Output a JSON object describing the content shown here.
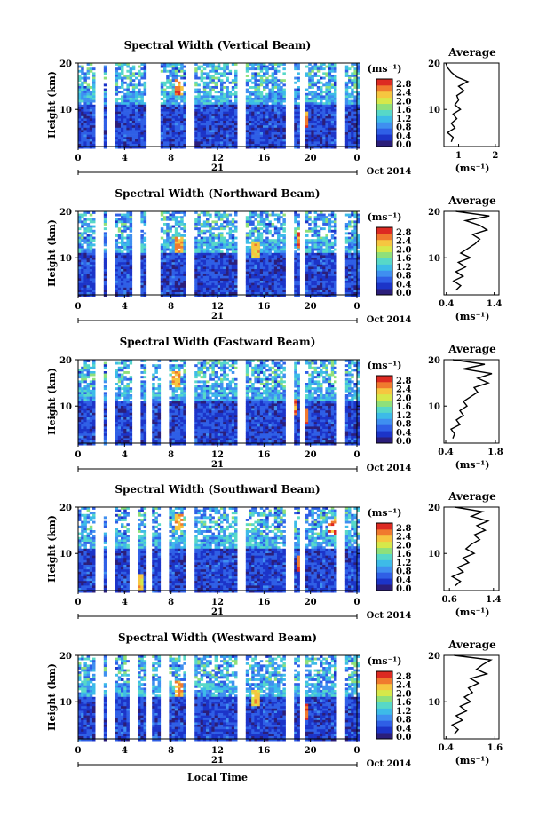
{
  "figure": {
    "xlabel": "Local Time",
    "date_label": "Oct 2014",
    "day_label": "21",
    "height_label": "Height (km)",
    "unit_label": "(ms⁻¹)",
    "avg_title": "Average"
  },
  "colorscale": {
    "ticks": [
      "2.8",
      "2.4",
      "2.0",
      "1.6",
      "1.2",
      "0.8",
      "0.4",
      "0.0"
    ],
    "colors": [
      "#2b1e7a",
      "#1c34c8",
      "#2f5fe6",
      "#3f8ff0",
      "#3dbbe8",
      "#57d8c8",
      "#8fe07a",
      "#d6e84a",
      "#f6c640",
      "#f07a2e",
      "#dd2a22"
    ]
  },
  "chart_data": [
    {
      "type": "heatmap",
      "title": "Spectral Width (Vertical Beam)",
      "xlabel": "Local Time",
      "ylabel": "Height (km)",
      "x_ticks": [
        "0",
        "4",
        "8",
        "12",
        "16",
        "20",
        "0"
      ],
      "xlim": [
        0,
        24
      ],
      "y_ticks": [
        "20",
        "10"
      ],
      "ylim": [
        2,
        20
      ],
      "gaps_hours": [
        1.7,
        2.6,
        6.0,
        6.7,
        9.5,
        14.0,
        18.0,
        19.2,
        22.4
      ],
      "hotspots": [
        {
          "t": 8.6,
          "h": 15,
          "v": 2.8
        },
        {
          "t": 19.3,
          "h": 8,
          "v": 2.8
        }
      ],
      "average": {
        "xlabel": "(ms⁻¹)",
        "x_ticks": [
          "1",
          "2"
        ],
        "xlim": [
          0.6,
          2.1
        ],
        "y_ticks": [
          "20",
          "10"
        ],
        "profile": [
          [
            0.8,
            3
          ],
          [
            0.85,
            4
          ],
          [
            0.7,
            5
          ],
          [
            0.9,
            6
          ],
          [
            0.8,
            7
          ],
          [
            0.95,
            8
          ],
          [
            0.85,
            9
          ],
          [
            1.05,
            10
          ],
          [
            0.9,
            11
          ],
          [
            1.0,
            12
          ],
          [
            0.95,
            13
          ],
          [
            1.15,
            14
          ],
          [
            1.0,
            15
          ],
          [
            1.25,
            16
          ],
          [
            0.95,
            17
          ],
          [
            0.8,
            18
          ],
          [
            0.7,
            19
          ],
          [
            0.65,
            20
          ]
        ]
      }
    },
    {
      "type": "heatmap",
      "title": "Spectral Width (Northward Beam)",
      "xlabel": "Local Time",
      "ylabel": "Height (km)",
      "x_ticks": [
        "0",
        "4",
        "8",
        "12",
        "16",
        "20",
        "0"
      ],
      "xlim": [
        0,
        24
      ],
      "y_ticks": [
        "20",
        "10"
      ],
      "ylim": [
        2,
        20
      ],
      "gaps_hours": [
        1.7,
        2.6,
        4.8,
        6.0,
        6.7,
        9.5,
        14.0,
        18.0,
        19.2,
        22.4
      ],
      "hotspots": [
        {
          "t": 8.5,
          "h": 13,
          "v": 2.6
        },
        {
          "t": 15.2,
          "h": 12,
          "v": 2.4
        },
        {
          "t": 19.0,
          "h": 14,
          "v": 2.8
        }
      ],
      "average": {
        "xlabel": "(ms⁻¹)",
        "x_ticks": [
          "0.4",
          "1.4"
        ],
        "xlim": [
          0.35,
          1.5
        ],
        "y_ticks": [
          "20",
          "10"
        ],
        "profile": [
          [
            0.6,
            3
          ],
          [
            0.7,
            4
          ],
          [
            0.55,
            5
          ],
          [
            0.75,
            6
          ],
          [
            0.6,
            7
          ],
          [
            0.8,
            8
          ],
          [
            0.65,
            9
          ],
          [
            0.9,
            10
          ],
          [
            0.7,
            11
          ],
          [
            0.85,
            12
          ],
          [
            1.0,
            13
          ],
          [
            1.1,
            14
          ],
          [
            0.95,
            15
          ],
          [
            1.25,
            16
          ],
          [
            1.1,
            17
          ],
          [
            0.8,
            18
          ],
          [
            1.3,
            19
          ],
          [
            0.6,
            20
          ]
        ]
      }
    },
    {
      "type": "heatmap",
      "title": "Spectral Width (Eastward Beam)",
      "xlabel": "Local Time",
      "ylabel": "Height (km)",
      "x_ticks": [
        "0",
        "4",
        "8",
        "12",
        "16",
        "20",
        "0"
      ],
      "xlim": [
        0,
        24
      ],
      "y_ticks": [
        "20",
        "10"
      ],
      "ylim": [
        2,
        20
      ],
      "gaps_hours": [
        1.7,
        2.6,
        4.8,
        6.0,
        7.4,
        9.5,
        14.0,
        18.0,
        19.2,
        22.4
      ],
      "hotspots": [
        {
          "t": 8.3,
          "h": 16,
          "v": 2.6
        },
        {
          "t": 18.3,
          "h": 10,
          "v": 2.8
        },
        {
          "t": 19.3,
          "h": 8,
          "v": 2.8
        }
      ],
      "average": {
        "xlabel": "(ms⁻¹)",
        "x_ticks": [
          "0.4",
          "1.8"
        ],
        "xlim": [
          0.35,
          1.9
        ],
        "y_ticks": [
          "20",
          "10"
        ],
        "profile": [
          [
            0.6,
            3
          ],
          [
            0.65,
            4
          ],
          [
            0.55,
            5
          ],
          [
            0.8,
            6
          ],
          [
            0.7,
            7
          ],
          [
            0.9,
            8
          ],
          [
            0.8,
            9
          ],
          [
            1.0,
            10
          ],
          [
            0.9,
            11
          ],
          [
            1.1,
            12
          ],
          [
            1.3,
            13
          ],
          [
            1.2,
            14
          ],
          [
            1.6,
            15
          ],
          [
            1.3,
            16
          ],
          [
            1.7,
            17
          ],
          [
            0.9,
            18
          ],
          [
            1.5,
            19
          ],
          [
            0.6,
            20
          ]
        ]
      }
    },
    {
      "type": "heatmap",
      "title": "Spectral Width (Southward Beam)",
      "xlabel": "Local Time",
      "ylabel": "Height (km)",
      "x_ticks": [
        "0",
        "4",
        "8",
        "12",
        "16",
        "20",
        "0"
      ],
      "xlim": [
        0,
        24
      ],
      "y_ticks": [
        "20",
        "10"
      ],
      "ylim": [
        2,
        20
      ],
      "gaps_hours": [
        1.7,
        2.6,
        4.6,
        6.0,
        7.4,
        9.5,
        14.0,
        18.0,
        19.2,
        22.4
      ],
      "hotspots": [
        {
          "t": 8.6,
          "h": 17,
          "v": 2.6
        },
        {
          "t": 5.2,
          "h": 4,
          "v": 2.4
        },
        {
          "t": 19.0,
          "h": 8,
          "v": 2.8
        },
        {
          "t": 21.8,
          "h": 16,
          "v": 2.8
        }
      ],
      "average": {
        "xlabel": "(ms⁻¹)",
        "x_ticks": [
          "0.6",
          "1.4"
        ],
        "xlim": [
          0.5,
          1.5
        ],
        "y_ticks": [
          "20",
          "10"
        ],
        "profile": [
          [
            0.7,
            3
          ],
          [
            0.8,
            4
          ],
          [
            0.65,
            5
          ],
          [
            0.85,
            6
          ],
          [
            0.75,
            7
          ],
          [
            0.95,
            8
          ],
          [
            0.85,
            9
          ],
          [
            1.05,
            10
          ],
          [
            0.9,
            11
          ],
          [
            1.0,
            12
          ],
          [
            1.15,
            13
          ],
          [
            1.05,
            14
          ],
          [
            1.25,
            15
          ],
          [
            1.1,
            16
          ],
          [
            1.3,
            17
          ],
          [
            1.0,
            18
          ],
          [
            1.2,
            19
          ],
          [
            0.7,
            20
          ]
        ]
      }
    },
    {
      "type": "heatmap",
      "title": "Spectral Width (Westward Beam)",
      "xlabel": "Local Time",
      "ylabel": "Height (km)",
      "x_ticks": [
        "0",
        "4",
        "8",
        "12",
        "16",
        "20",
        "0"
      ],
      "xlim": [
        0,
        24
      ],
      "y_ticks": [
        "20",
        "10"
      ],
      "ylim": [
        2,
        20
      ],
      "gaps_hours": [
        1.7,
        2.6,
        4.6,
        6.0,
        7.4,
        9.5,
        14.0,
        18.0,
        19.2,
        22.4
      ],
      "hotspots": [
        {
          "t": 8.5,
          "h": 13,
          "v": 2.6
        },
        {
          "t": 15.2,
          "h": 11,
          "v": 2.4
        },
        {
          "t": 19.3,
          "h": 8,
          "v": 2.8
        }
      ],
      "average": {
        "xlabel": "(ms⁻¹)",
        "x_ticks": [
          "0.4",
          "1.6"
        ],
        "xlim": [
          0.35,
          1.7
        ],
        "y_ticks": [
          "20",
          "10"
        ],
        "profile": [
          [
            0.6,
            3
          ],
          [
            0.7,
            4
          ],
          [
            0.55,
            5
          ],
          [
            0.8,
            6
          ],
          [
            0.65,
            7
          ],
          [
            0.9,
            8
          ],
          [
            0.75,
            9
          ],
          [
            1.0,
            10
          ],
          [
            0.85,
            11
          ],
          [
            1.05,
            12
          ],
          [
            0.95,
            13
          ],
          [
            1.2,
            14
          ],
          [
            1.0,
            15
          ],
          [
            1.4,
            16
          ],
          [
            1.15,
            17
          ],
          [
            1.3,
            18
          ],
          [
            1.5,
            19
          ],
          [
            0.6,
            20
          ]
        ]
      }
    }
  ]
}
